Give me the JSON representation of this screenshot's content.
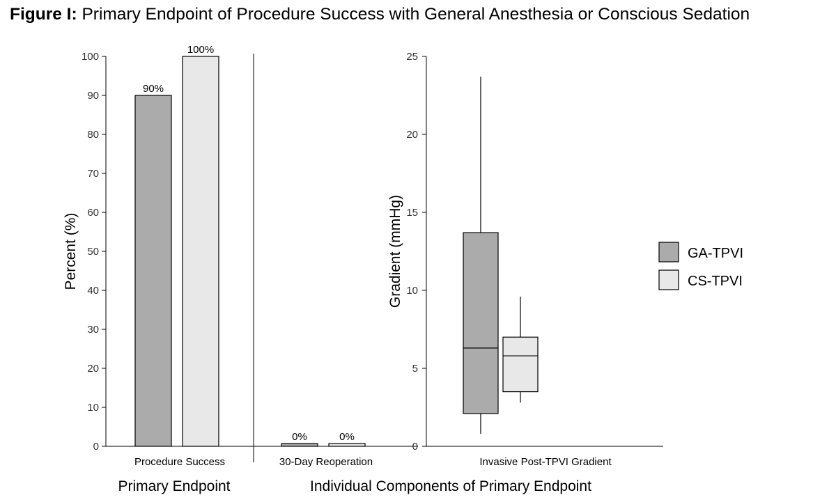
{
  "figure": {
    "title_prefix": "Figure I:",
    "title_rest": " Primary Endpoint of Procedure Success with General Anesthesia or Conscious Sedation"
  },
  "colors": {
    "GA-TPVI": "#ababab",
    "CS-TPVI": "#e8e8e8"
  },
  "legend": [
    "GA-TPVI",
    "CS-TPVI"
  ],
  "group_labels": {
    "primary": "Primary Endpoint",
    "components": "Individual Components of Primary Endpoint"
  },
  "chart_data": [
    {
      "type": "bar",
      "categories": [
        "Procedure Success",
        "30-Day Reoperation"
      ],
      "series": [
        {
          "name": "GA-TPVI",
          "values": [
            90,
            0
          ],
          "labels": [
            "90%",
            "0%"
          ]
        },
        {
          "name": "CS-TPVI",
          "values": [
            100,
            0
          ],
          "labels": [
            "100%",
            "0%"
          ]
        }
      ],
      "ylabel": "Percent (%)",
      "ylim": [
        0,
        100
      ],
      "yticks": [
        0,
        10,
        20,
        30,
        40,
        50,
        60,
        70,
        80,
        90,
        100
      ],
      "grid": false
    },
    {
      "type": "box",
      "categories": [
        "Invasive Post-TPVI Gradient"
      ],
      "series": [
        {
          "name": "GA-TPVI",
          "min": 0.8,
          "q1": 2.1,
          "median": 6.3,
          "q3": 13.7,
          "max": 23.7
        },
        {
          "name": "CS-TPVI",
          "min": 2.8,
          "q1": 3.5,
          "median": 5.8,
          "q3": 7.0,
          "max": 9.6
        }
      ],
      "ylabel": "Gradient (mmHg)",
      "ylim": [
        0,
        25
      ],
      "yticks": [
        0,
        5,
        10,
        15,
        20,
        25
      ],
      "grid": false,
      "legend_position": "right"
    }
  ]
}
